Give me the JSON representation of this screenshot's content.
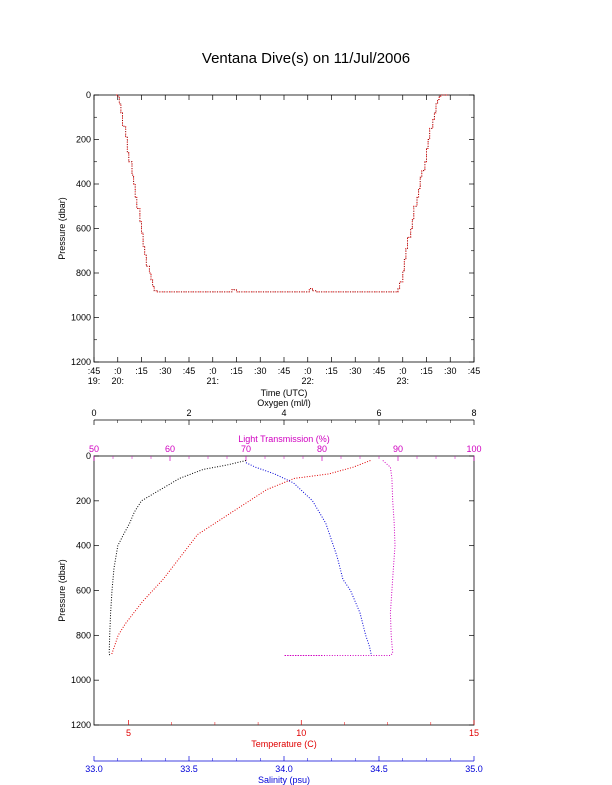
{
  "title": "Ventana Dive(s) on 11/Jul/2006",
  "colors": {
    "black": "#000000",
    "red": "#e00000",
    "blue": "#0000d8",
    "magenta": "#d000c0"
  },
  "chart_data": [
    {
      "type": "line",
      "xlabel": "Time (UTC)",
      "ylabel": "Pressure (dbar)",
      "xlim": [
        "19:45",
        "23:45"
      ],
      "ylim": [
        1200,
        0
      ],
      "x_ticks": [
        {
          "top": ":45",
          "bottom": "19:"
        },
        {
          "top": ":0",
          "bottom": "20:"
        },
        {
          "top": ":15",
          "bottom": ""
        },
        {
          "top": ":30",
          "bottom": ""
        },
        {
          "top": ":45",
          "bottom": ""
        },
        {
          "top": ":0",
          "bottom": "21:"
        },
        {
          "top": ":15",
          "bottom": ""
        },
        {
          "top": ":30",
          "bottom": ""
        },
        {
          "top": ":45",
          "bottom": ""
        },
        {
          "top": ":0",
          "bottom": "22:"
        },
        {
          "top": ":15",
          "bottom": ""
        },
        {
          "top": ":30",
          "bottom": ""
        },
        {
          "top": ":45",
          "bottom": ""
        },
        {
          "top": ":0",
          "bottom": "23:"
        },
        {
          "top": ":15",
          "bottom": ""
        },
        {
          "top": ":30",
          "bottom": ""
        },
        {
          "top": ":45",
          "bottom": ""
        }
      ],
      "y_ticks": [
        "0",
        "200",
        "400",
        "600",
        "800",
        "1000",
        "1200"
      ],
      "series": [
        {
          "color": "red",
          "x": [
            "19:59",
            "20:00",
            "20:01",
            "20:02",
            "20:03",
            "20:05",
            "20:06",
            "20:07",
            "20:09",
            "20:10",
            "20:11",
            "20:12",
            "20:14",
            "20:15",
            "20:16",
            "20:17",
            "20:18",
            "20:20",
            "20:21",
            "20:22",
            "20:23",
            "20:25",
            "20:26",
            "20:28",
            "20:29",
            "20:30",
            "20:31",
            "20:32",
            "20:35",
            "20:45",
            "21:00",
            "21:10",
            "21:12",
            "21:15",
            "21:30",
            "21:45",
            "22:00",
            "22:01",
            "22:03",
            "22:05",
            "22:15",
            "22:30",
            "22:45",
            "22:55",
            "22:57",
            "22:58",
            "23:00",
            "23:01",
            "23:02",
            "23:03",
            "23:05",
            "23:06",
            "23:07",
            "23:09",
            "23:10",
            "23:11",
            "23:12",
            "23:14",
            "23:15",
            "23:16",
            "23:17",
            "23:19",
            "23:20",
            "23:21",
            "23:22",
            "23:23",
            "23:24",
            "23:25",
            "23:27",
            "23:29"
          ],
          "y": [
            0,
            10,
            40,
            80,
            140,
            190,
            260,
            300,
            360,
            400,
            460,
            510,
            570,
            620,
            680,
            720,
            770,
            800,
            830,
            860,
            880,
            885,
            885,
            885,
            885,
            885,
            885,
            885,
            885,
            885,
            885,
            885,
            875,
            885,
            885,
            885,
            885,
            870,
            880,
            885,
            885,
            885,
            885,
            885,
            870,
            840,
            790,
            740,
            690,
            640,
            600,
            560,
            500,
            460,
            420,
            370,
            340,
            300,
            240,
            200,
            150,
            110,
            80,
            40,
            20,
            5,
            0,
            0,
            0,
            0
          ]
        }
      ]
    },
    {
      "type": "line",
      "ylabel": "Pressure (dbar)",
      "ylim": [
        1200,
        0
      ],
      "y_ticks": [
        "0",
        "200",
        "400",
        "600",
        "800",
        "1000",
        "1200"
      ],
      "axes": [
        {
          "name": "Oxygen (ml/l)",
          "position": "top",
          "range": [
            0,
            8
          ],
          "ticks": [
            "0",
            "2",
            "4",
            "6",
            "8"
          ],
          "color": "black"
        },
        {
          "name": "Light Transmission (%)",
          "position": "top",
          "range": [
            50,
            100
          ],
          "ticks": [
            "50",
            "60",
            "70",
            "80",
            "90",
            "100"
          ],
          "color": "magenta"
        },
        {
          "name": "Temperature (C)",
          "position": "bottom",
          "range": [
            4,
            15
          ],
          "ticks": [
            "5",
            "10",
            "15"
          ],
          "color": "red"
        },
        {
          "name": "Salinity (psu)",
          "position": "bottom",
          "range": [
            33.0,
            35.0
          ],
          "ticks": [
            "33.0",
            "33.5",
            "34.0",
            "34.5",
            "35.0"
          ],
          "color": "blue"
        }
      ],
      "series": [
        {
          "name": "Oxygen (ml/l)",
          "color": "black",
          "axis": 0,
          "x": [
            3.2,
            2.8,
            2.3,
            1.8,
            1.4,
            1.0,
            0.85,
            0.75,
            0.62,
            0.5,
            0.42,
            0.38,
            0.35,
            0.33,
            0.32,
            0.33
          ],
          "y": [
            20,
            40,
            60,
            100,
            150,
            200,
            250,
            300,
            350,
            400,
            500,
            600,
            700,
            800,
            880,
            890
          ]
        },
        {
          "name": "Light Transmission (%)",
          "color": "magenta",
          "axis": 1,
          "x": [
            88,
            89,
            89.2,
            89.3,
            89.5,
            89.6,
            89.4,
            89.2,
            89.0,
            89.1,
            89.3,
            89.0,
            85.0,
            75.0,
            80.0
          ],
          "y": [
            20,
            50,
            100,
            200,
            300,
            400,
            500,
            600,
            700,
            800,
            880,
            890,
            890,
            890,
            890
          ]
        },
        {
          "name": "Temperature (C)",
          "color": "red",
          "axis": 2,
          "x": [
            12.0,
            11.5,
            10.8,
            9.8,
            9.0,
            8.5,
            8.0,
            7.5,
            7.0,
            6.5,
            6.0,
            5.4,
            4.9,
            4.7,
            4.5
          ],
          "y": [
            20,
            50,
            80,
            100,
            150,
            200,
            250,
            300,
            350,
            450,
            550,
            650,
            750,
            800,
            890
          ]
        },
        {
          "name": "Salinity (psu)",
          "color": "blue",
          "axis": 3,
          "x": [
            33.8,
            33.85,
            33.95,
            34.05,
            34.15,
            34.22,
            34.26,
            34.28,
            34.31,
            34.35,
            34.4,
            34.43,
            34.45,
            34.46
          ],
          "y": [
            30,
            50,
            80,
            120,
            200,
            300,
            400,
            450,
            550,
            600,
            700,
            800,
            850,
            890
          ]
        }
      ]
    }
  ]
}
